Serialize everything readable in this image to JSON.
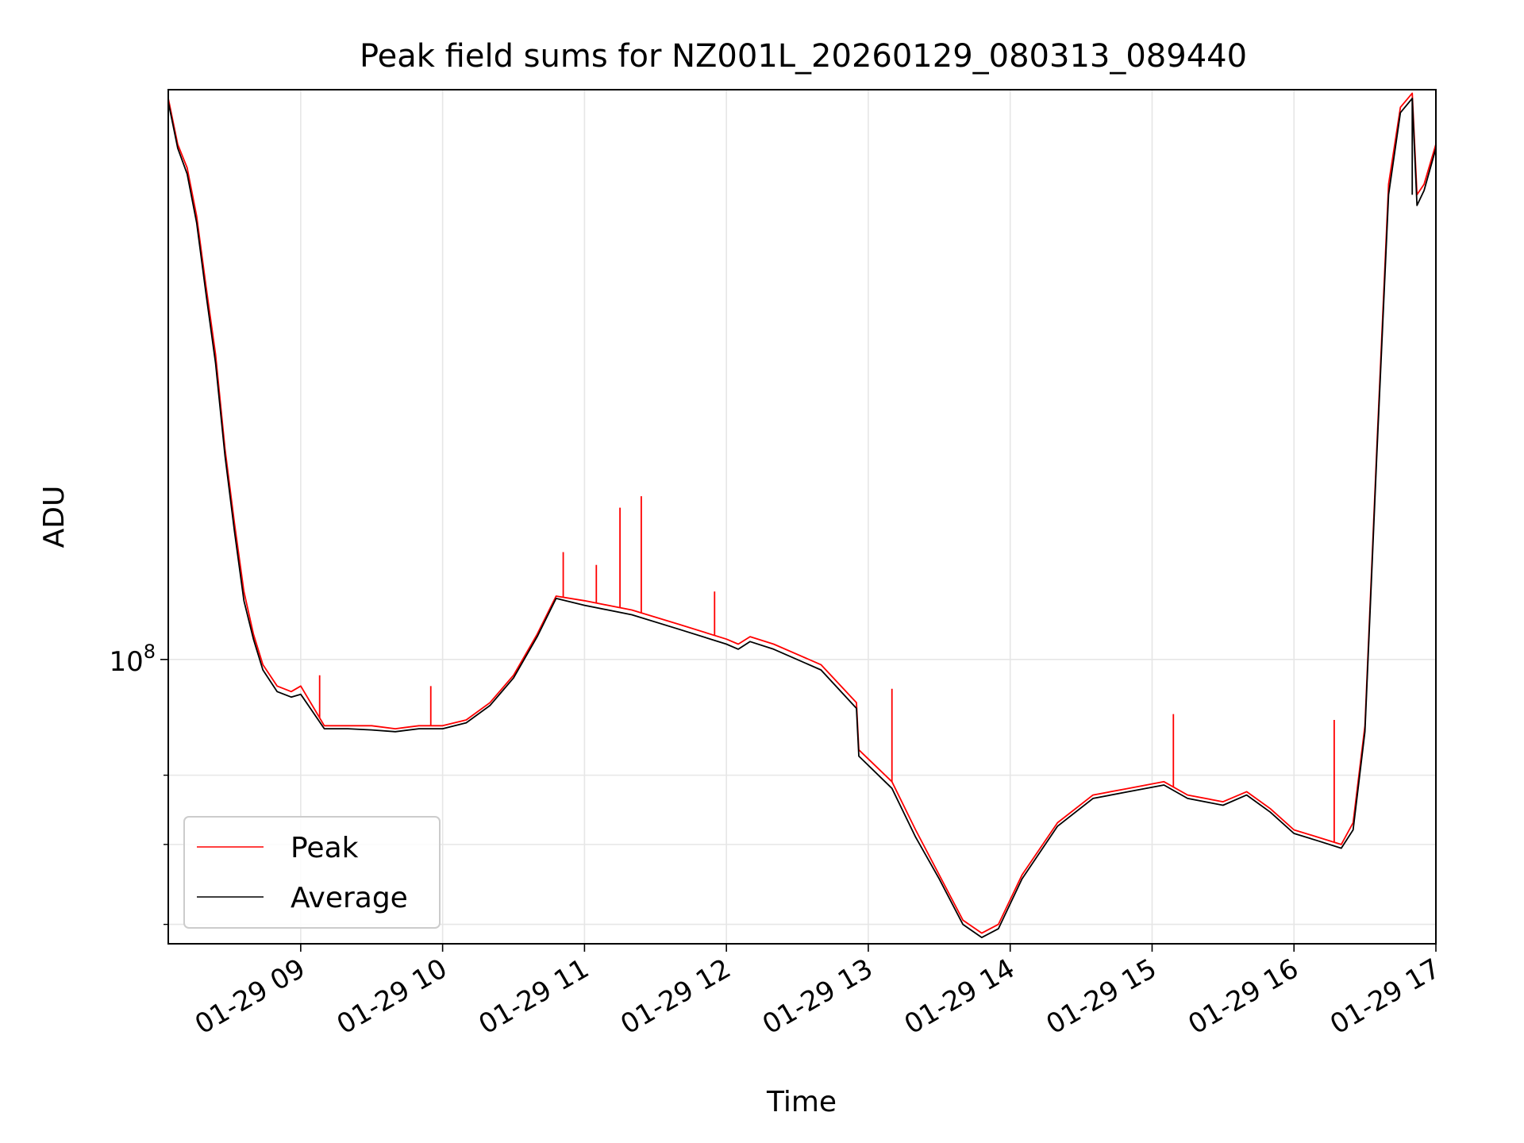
{
  "chart_data": {
    "type": "line",
    "title": "Peak field sums for NZ001L_20260129_080313_089440",
    "xlabel": "Time",
    "ylabel": "ADU",
    "y_scale": "log",
    "grid": true,
    "legend_position": "lower-left",
    "x_ticks": [
      "01-29 09",
      "01-29 10",
      "01-29 11",
      "01-29 12",
      "01-29 13",
      "01-29 14",
      "01-29 15",
      "01-29 16",
      "01-29 17"
    ],
    "y_major_tick": {
      "value": 100000000,
      "base": "10",
      "exponent": "8"
    },
    "y_minor_ticks": [
      60000000,
      70000000,
      80000000
    ],
    "xlim": [
      "2026-01-29T08:04",
      "2026-01-29T17:00"
    ],
    "ylim": [
      57800000,
      300000000
    ],
    "series": [
      {
        "name": "Peak",
        "color": "#ff0000",
        "x": [
          "2026-01-29T08:04",
          "2026-01-29T08:08",
          "2026-01-29T08:12",
          "2026-01-29T08:16",
          "2026-01-29T08:20",
          "2026-01-29T08:24",
          "2026-01-29T08:28",
          "2026-01-29T08:32",
          "2026-01-29T08:36",
          "2026-01-29T08:40",
          "2026-01-29T08:44",
          "2026-01-29T08:50",
          "2026-01-29T08:56",
          "2026-01-29T09:00",
          "2026-01-29T09:10",
          "2026-01-29T09:20",
          "2026-01-29T09:30",
          "2026-01-29T09:40",
          "2026-01-29T09:50",
          "2026-01-29T10:00",
          "2026-01-29T10:10",
          "2026-01-29T10:20",
          "2026-01-29T10:30",
          "2026-01-29T10:40",
          "2026-01-29T10:48",
          "2026-01-29T11:00",
          "2026-01-29T11:20",
          "2026-01-29T11:40",
          "2026-01-29T12:00",
          "2026-01-29T12:05",
          "2026-01-29T12:10",
          "2026-01-29T12:20",
          "2026-01-29T12:40",
          "2026-01-29T12:55",
          "2026-01-29T12:56",
          "2026-01-29T13:10",
          "2026-01-29T13:20",
          "2026-01-29T13:30",
          "2026-01-29T13:40",
          "2026-01-29T13:48",
          "2026-01-29T13:55",
          "2026-01-29T14:05",
          "2026-01-29T14:20",
          "2026-01-29T14:35",
          "2026-01-29T14:50",
          "2026-01-29T15:05",
          "2026-01-29T15:15",
          "2026-01-29T15:30",
          "2026-01-29T15:40",
          "2026-01-29T15:50",
          "2026-01-29T16:00",
          "2026-01-29T16:10",
          "2026-01-29T16:20",
          "2026-01-29T16:25",
          "2026-01-29T16:30",
          "2026-01-29T16:35",
          "2026-01-29T16:40",
          "2026-01-29T16:45",
          "2026-01-29T16:50",
          "2026-01-29T16:52",
          "2026-01-29T16:55",
          "2026-01-29T17:00"
        ],
        "y": [
          295000000,
          270000000,
          258000000,
          235000000,
          205000000,
          180000000,
          150000000,
          130000000,
          114000000,
          105000000,
          99000000,
          95000000,
          94000000,
          95000000,
          88000000,
          88000000,
          88000000,
          87500000,
          88000000,
          88000000,
          89000000,
          92000000,
          97000000,
          105000000,
          113000000,
          112000000,
          110000000,
          107000000,
          104000000,
          103000000,
          104500000,
          103000000,
          99000000,
          92000000,
          84000000,
          79000000,
          72000000,
          66000000,
          60500000,
          59000000,
          60000000,
          66000000,
          73000000,
          77000000,
          78000000,
          79000000,
          77000000,
          76000000,
          77500000,
          75000000,
          72000000,
          71000000,
          70000000,
          73000000,
          88000000,
          150000000,
          250000000,
          290000000,
          298000000,
          245000000,
          250000000,
          270000000
        ]
      },
      {
        "name": "Average",
        "color": "#000000",
        "x": [
          "2026-01-29T08:04",
          "2026-01-29T08:08",
          "2026-01-29T08:12",
          "2026-01-29T08:16",
          "2026-01-29T08:20",
          "2026-01-29T08:24",
          "2026-01-29T08:28",
          "2026-01-29T08:32",
          "2026-01-29T08:36",
          "2026-01-29T08:40",
          "2026-01-29T08:44",
          "2026-01-29T08:50",
          "2026-01-29T08:56",
          "2026-01-29T09:00",
          "2026-01-29T09:10",
          "2026-01-29T09:20",
          "2026-01-29T09:30",
          "2026-01-29T09:40",
          "2026-01-29T09:50",
          "2026-01-29T10:00",
          "2026-01-29T10:10",
          "2026-01-29T10:20",
          "2026-01-29T10:30",
          "2026-01-29T10:40",
          "2026-01-29T10:48",
          "2026-01-29T11:00",
          "2026-01-29T11:20",
          "2026-01-29T11:40",
          "2026-01-29T12:00",
          "2026-01-29T12:05",
          "2026-01-29T12:10",
          "2026-01-29T12:20",
          "2026-01-29T12:40",
          "2026-01-29T12:55",
          "2026-01-29T12:56",
          "2026-01-29T13:10",
          "2026-01-29T13:20",
          "2026-01-29T13:30",
          "2026-01-29T13:40",
          "2026-01-29T13:48",
          "2026-01-29T13:55",
          "2026-01-29T14:05",
          "2026-01-29T14:20",
          "2026-01-29T14:35",
          "2026-01-29T14:50",
          "2026-01-29T15:05",
          "2026-01-29T15:15",
          "2026-01-29T15:30",
          "2026-01-29T15:40",
          "2026-01-29T15:50",
          "2026-01-29T16:00",
          "2026-01-29T16:10",
          "2026-01-29T16:20",
          "2026-01-29T16:25",
          "2026-01-29T16:30",
          "2026-01-29T16:35",
          "2026-01-29T16:40",
          "2026-01-29T16:45",
          "2026-01-29T16:50",
          "2026-01-29T16:52",
          "2026-01-29T16:55",
          "2026-01-29T17:00"
        ],
        "y": [
          293000000,
          268000000,
          255000000,
          232000000,
          202000000,
          177000000,
          148000000,
          128000000,
          112000000,
          104000000,
          98000000,
          94000000,
          93000000,
          93500000,
          87500000,
          87500000,
          87300000,
          87000000,
          87500000,
          87500000,
          88500000,
          91500000,
          96500000,
          104500000,
          112500000,
          111000000,
          109000000,
          106000000,
          103000000,
          102000000,
          103500000,
          102000000,
          98000000,
          91000000,
          83000000,
          78000000,
          71000000,
          65500000,
          60000000,
          58500000,
          59500000,
          65500000,
          72500000,
          76500000,
          77500000,
          78500000,
          76500000,
          75500000,
          77000000,
          74500000,
          71500000,
          70500000,
          69500000,
          72000000,
          87000000,
          148000000,
          245000000,
          287000000,
          295000000,
          240000000,
          247000000,
          268000000
        ]
      }
    ],
    "spikes": [
      {
        "series": "Peak",
        "x": "2026-01-29T09:08",
        "y": 97000000
      },
      {
        "series": "Peak",
        "x": "2026-01-29T09:55",
        "y": 95000000
      },
      {
        "series": "Peak",
        "x": "2026-01-29T10:51",
        "y": 123000000
      },
      {
        "series": "Peak",
        "x": "2026-01-29T11:05",
        "y": 120000000
      },
      {
        "series": "Peak",
        "x": "2026-01-29T11:15",
        "y": 134000000
      },
      {
        "series": "Peak",
        "x": "2026-01-29T11:24",
        "y": 137000000
      },
      {
        "series": "Peak",
        "x": "2026-01-29T11:55",
        "y": 114000000
      },
      {
        "series": "Peak",
        "x": "2026-01-29T13:10",
        "y": 94500000
      },
      {
        "series": "Peak",
        "x": "2026-01-29T15:09",
        "y": 90000000
      },
      {
        "series": "Peak",
        "x": "2026-01-29T16:17",
        "y": 89000000
      },
      {
        "series": "Average",
        "x": "2026-01-29T16:50",
        "y": 245000000
      }
    ]
  }
}
